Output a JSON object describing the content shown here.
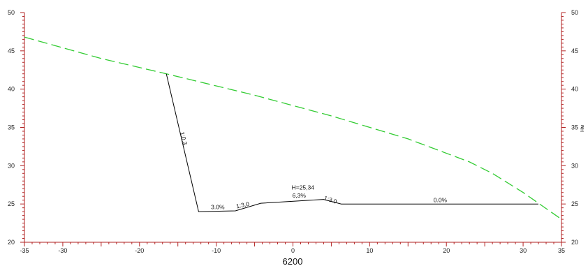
{
  "chart_data": {
    "type": "line",
    "station_label": "6200",
    "right_axis_label": "Hм",
    "xlim": [
      -35,
      35
    ],
    "ylim": [
      20,
      50
    ],
    "x_ticks": [
      -35,
      -30,
      -20,
      -10,
      0,
      10,
      20,
      30,
      35
    ],
    "x_tick_labels": [
      "-35",
      "-30",
      "-20",
      "-10",
      "0",
      "10",
      "20",
      "30",
      "35"
    ],
    "y_ticks": [
      20,
      25,
      30,
      35,
      40,
      45,
      50
    ],
    "y_tick_labels": [
      "20",
      "25",
      "30",
      "35",
      "40",
      "45",
      "50"
    ],
    "grid": false,
    "colors": {
      "axis": "#b22222",
      "ground": "#33cc33",
      "design": "#000000"
    },
    "series": [
      {
        "style": "dashed",
        "color": "#33cc33",
        "points": [
          [
            -35,
            46.8
          ],
          [
            -25,
            44.0
          ],
          [
            -16.5,
            42.0
          ],
          [
            -5,
            39.2
          ],
          [
            5,
            36.5
          ],
          [
            15,
            33.5
          ],
          [
            23,
            30.5
          ],
          [
            26,
            29.0
          ],
          [
            30,
            26.5
          ],
          [
            35,
            23.0
          ]
        ]
      },
      {
        "style": "solid",
        "color": "#000000",
        "points": [
          [
            -16.5,
            42.0
          ],
          [
            -12.3,
            24.0
          ],
          [
            -7.5,
            24.1
          ],
          [
            -4.2,
            25.1
          ],
          [
            4,
            25.6
          ],
          [
            6.3,
            25.0
          ],
          [
            32,
            25.0
          ]
        ]
      }
    ],
    "annotations": [
      {
        "text": "1:0.3",
        "x": -14.5,
        "y": 33.5,
        "rotate": 76
      },
      {
        "text": "3.0%",
        "x": -9.8,
        "y": 24.35,
        "rotate": 0
      },
      {
        "text": "1:3.0",
        "x": -6.5,
        "y": 24.6,
        "rotate": -12
      },
      {
        "text": "H=25,34",
        "x": 1.3,
        "y": 26.9,
        "rotate": 0
      },
      {
        "text": "6,3%",
        "x": 0.8,
        "y": 25.85,
        "rotate": 0
      },
      {
        "text": "1:3.0",
        "x": 4.8,
        "y": 25.3,
        "rotate": 18
      },
      {
        "text": "0.0%",
        "x": 19.2,
        "y": 25.25,
        "rotate": 0
      }
    ]
  }
}
